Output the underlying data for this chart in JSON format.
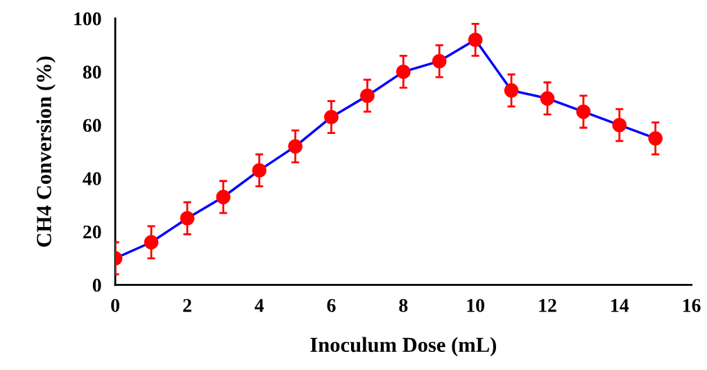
{
  "chart_data": {
    "type": "line",
    "xlabel": "Inoculum Dose (mL)",
    "ylabel": "CH4 Conversion (%)",
    "x": [
      0,
      1,
      2,
      3,
      4,
      5,
      6,
      7,
      8,
      9,
      10,
      11,
      12,
      13,
      14,
      15
    ],
    "series": [
      {
        "color": "#0000ff",
        "colors": [
          "#ff0000",
          "#ff0000",
          "#ff0000",
          "#ff0000",
          "#ff0000",
          "#ff0000",
          "#ff0000",
          "#ff0000",
          "#ff0000",
          "#ff0000",
          "#ff0000",
          "#ff0000",
          "#ff0000",
          "#ff0000",
          "#ff0000",
          "#ff0000"
        ],
        "values": [
          10,
          16,
          25,
          33,
          43,
          52,
          63,
          71,
          80,
          84,
          92,
          73,
          70,
          65,
          60,
          55
        ],
        "errors": [
          6,
          6,
          6,
          6,
          6,
          6,
          6,
          6,
          6,
          6,
          6,
          6,
          6,
          6,
          6,
          6
        ]
      }
    ],
    "xlim": [
      0,
      16
    ],
    "xticks": [
      0,
      2,
      4,
      6,
      8,
      10,
      12,
      14,
      16
    ],
    "ylim": [
      0,
      100
    ],
    "yticks": [
      0,
      20,
      40,
      60,
      80,
      100
    ],
    "marker": "circle",
    "line_style": "solid",
    "grid": false,
    "legend": false
  }
}
